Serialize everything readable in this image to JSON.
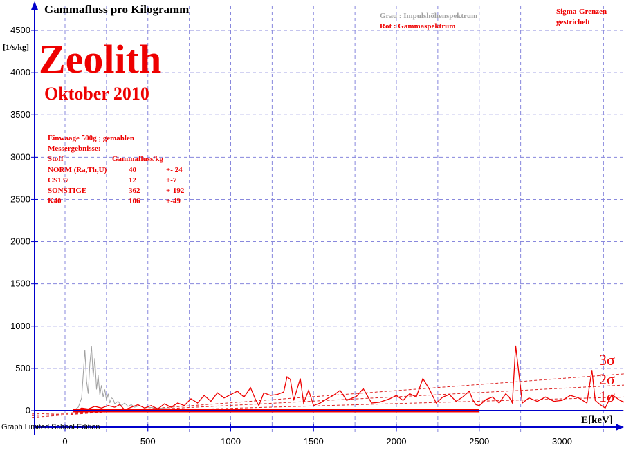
{
  "window": {
    "footer": "Graph Limited School Edition"
  },
  "chart_data": {
    "type": "line",
    "title": "Gammafluss pro Kilogramm",
    "ylabel": "[1/s/kg]",
    "xlabel": "E[keV]",
    "xlim": [
      -200,
      3550
    ],
    "ylim": [
      -250,
      4600
    ],
    "xticks": [
      0,
      500,
      1000,
      1500,
      2000,
      2500,
      3000
    ],
    "yticks": [
      0,
      500,
      1000,
      1500,
      2000,
      2500,
      3000,
      3500,
      4000,
      4500
    ],
    "grid": true,
    "sample_name": "Zeolith",
    "date": "Oktober 2010",
    "legend": {
      "gray": "Grau : Impulshöhenspektrum",
      "red": "Rot   : Gammaspektrum"
    },
    "sigma_note": [
      "Sigma-Grenzen",
      "gestrichelt"
    ],
    "sigma_labels": [
      "3σ",
      "2σ",
      "1σ"
    ],
    "info_lines": [
      [
        "Einwaage  500g  ; gemahlen",
        "",
        ""
      ],
      [
        "Messergebnisse:",
        "",
        ""
      ],
      [
        "Stoff",
        "Gammafluss/kg",
        ""
      ],
      [
        "NORM (Ra,Th,U)",
        "40",
        "+- 24"
      ],
      [
        "CS137",
        "12",
        "+-7"
      ],
      [
        "SONSTIGE",
        "362",
        "+-192"
      ],
      [
        "K40",
        "106",
        "+-49"
      ]
    ],
    "sigma_lines": [
      {
        "name": "3σ",
        "x": [
          -200,
          3550
        ],
        "y": [
          -80,
          460
        ]
      },
      {
        "name": "2σ",
        "x": [
          -200,
          3550
        ],
        "y": [
          -60,
          320
        ]
      },
      {
        "name": "1σ",
        "x": [
          -200,
          3550
        ],
        "y": [
          -40,
          170
        ]
      }
    ],
    "series": [
      {
        "name": "Impulshöhenspektrum",
        "color": "#a0a0a0",
        "x": [
          50,
          80,
          100,
          110,
          120,
          130,
          140,
          150,
          160,
          170,
          180,
          190,
          200,
          210,
          220,
          230,
          240,
          250,
          260,
          270,
          280,
          290,
          300,
          320,
          340,
          360,
          380,
          400,
          420,
          450,
          480,
          500,
          550,
          600,
          650,
          700,
          800,
          900,
          1000,
          1200,
          1400,
          1600,
          1800,
          2000,
          2200,
          2400,
          2600,
          2700,
          2800,
          3000,
          3200,
          3400,
          3550
        ],
        "y": [
          0,
          40,
          150,
          430,
          720,
          350,
          200,
          560,
          760,
          400,
          620,
          250,
          420,
          180,
          300,
          160,
          250,
          120,
          200,
          90,
          150,
          140,
          80,
          110,
          60,
          90,
          50,
          70,
          40,
          60,
          30,
          40,
          30,
          25,
          20,
          15,
          12,
          10,
          8,
          6,
          5,
          4,
          3,
          3,
          2,
          2,
          2,
          2,
          2,
          1,
          1,
          1,
          1
        ]
      },
      {
        "name": "Gammaspektrum",
        "color": "#ee0000",
        "x": [
          50,
          70,
          100,
          140,
          180,
          220,
          260,
          300,
          330,
          360,
          400,
          440,
          480,
          520,
          560,
          600,
          640,
          680,
          720,
          760,
          800,
          840,
          880,
          920,
          960,
          1000,
          1040,
          1080,
          1120,
          1150,
          1170,
          1200,
          1240,
          1280,
          1320,
          1340,
          1360,
          1380,
          1420,
          1440,
          1470,
          1500,
          1540,
          1580,
          1620,
          1660,
          1700,
          1760,
          1800,
          1850,
          1900,
          1960,
          2000,
          2040,
          2080,
          2120,
          2160,
          2200,
          2240,
          2280,
          2320,
          2360,
          2400,
          2440,
          2460,
          2480,
          2500,
          2540,
          2580,
          2620,
          2660,
          2680,
          2700,
          2720,
          2760,
          2800,
          2850,
          2900,
          2950,
          3000,
          3050,
          3100,
          3150,
          3180,
          3200,
          3230,
          3260,
          3300,
          3350,
          3400,
          3450,
          3500,
          3550
        ],
        "y": [
          0,
          0,
          30,
          20,
          50,
          30,
          60,
          40,
          70,
          10,
          40,
          70,
          30,
          60,
          20,
          80,
          40,
          90,
          60,
          140,
          90,
          180,
          110,
          210,
          150,
          190,
          230,
          160,
          270,
          130,
          60,
          210,
          180,
          190,
          220,
          400,
          370,
          120,
          380,
          90,
          240,
          60,
          90,
          140,
          180,
          240,
          120,
          170,
          260,
          90,
          100,
          140,
          180,
          120,
          200,
          160,
          380,
          250,
          90,
          160,
          190,
          110,
          160,
          230,
          130,
          70,
          60,
          130,
          160,
          90,
          200,
          160,
          90,
          770,
          90,
          150,
          110,
          160,
          110,
          120,
          180,
          150,
          90,
          480,
          120,
          70,
          30,
          190,
          120,
          80,
          30,
          90,
          70
        ]
      }
    ]
  }
}
